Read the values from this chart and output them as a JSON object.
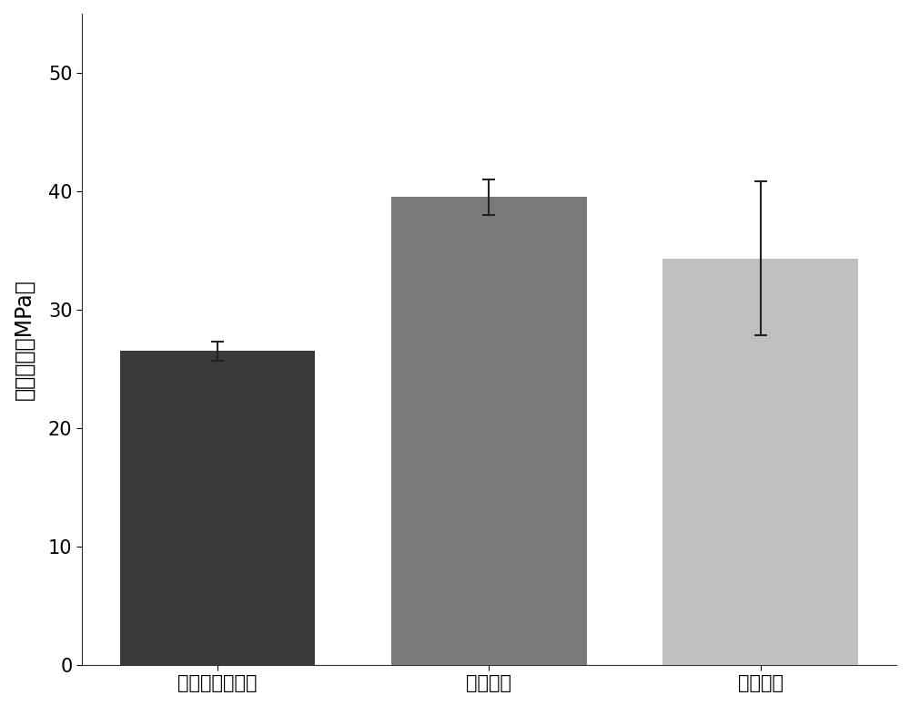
{
  "categories": [
    "对照（湿粘接）",
    "实施例七",
    "实施例八"
  ],
  "values": [
    26.5,
    39.5,
    34.3
  ],
  "errors": [
    0.8,
    1.5,
    6.5
  ],
  "bar_colors": [
    "#3a3a3a",
    "#7a7a7a",
    "#c0c0c0"
  ],
  "bar_edge_colors": [
    "#2a2a2a",
    "#5a5a5a",
    "#a8a8a8"
  ],
  "ylabel": "粘接强度（MPa）",
  "ylim": [
    0,
    55
  ],
  "yticks": [
    0,
    10,
    20,
    30,
    40,
    50
  ],
  "background_color": "#ffffff",
  "bar_width": 0.72,
  "error_capsize": 5,
  "error_color": "#222222",
  "error_linewidth": 1.5,
  "ylabel_fontsize": 17,
  "tick_fontsize": 15,
  "xtick_fontsize": 15
}
